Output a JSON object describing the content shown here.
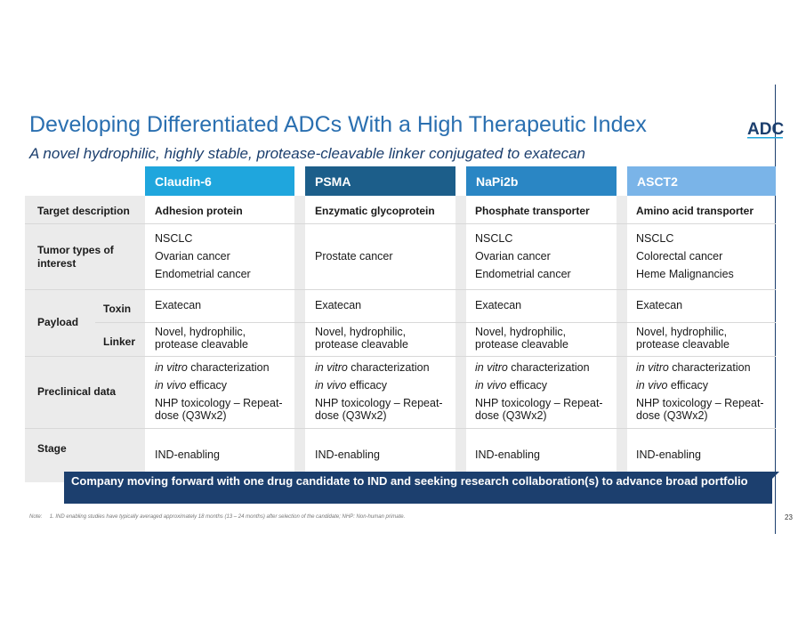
{
  "title": "Developing Differentiated ADCs With a High Therapeutic Index",
  "subtitle": "A novel hydrophilic, highly stable, protease-cleavable linker conjugated to exatecan",
  "logo_text": "ADC",
  "columns": [
    {
      "label": "Claudin-6",
      "color": "#1fa6dd"
    },
    {
      "label": "PSMA",
      "color": "#1c5e8a"
    },
    {
      "label": "NaPi2b",
      "color": "#2a86c4"
    },
    {
      "label": "ASCT2",
      "color": "#7ab4e8"
    }
  ],
  "row_labels": {
    "target": "Target description",
    "tumor": "Tumor types of interest",
    "payload": "Payload",
    "toxin": "Toxin",
    "linker": "Linker",
    "preclinical": "Preclinical data",
    "stage": "Stage"
  },
  "cells": {
    "target": [
      "Adhesion protein",
      "Enzymatic glycoprotein",
      "Phosphate transporter",
      "Amino acid transporter"
    ],
    "tumor": [
      [
        "NSCLC",
        "Ovarian cancer",
        "Endometrial cancer"
      ],
      [
        "Prostate cancer"
      ],
      [
        "NSCLC",
        "Ovarian cancer",
        "Endometrial cancer"
      ],
      [
        "NSCLC",
        "Colorectal cancer",
        "Heme Malignancies"
      ]
    ],
    "toxin": [
      "Exatecan",
      "Exatecan",
      "Exatecan",
      "Exatecan"
    ],
    "linker": [
      "Novel, hydrophilic,",
      "protease cleavable"
    ],
    "preclinical": {
      "italic_1": "in vitro",
      "rest_1": " characterization",
      "italic_2": "in vivo",
      "rest_2": " efficacy",
      "line_3": "NHP toxicology – Repeat-",
      "line_4": "dose (Q3Wx2)"
    },
    "stage": [
      "IND-enabling",
      "IND-enabling",
      "IND-enabling",
      "IND-enabling"
    ]
  },
  "banner": "Company moving forward with one drug candidate to IND and seeking research collaboration(s) to advance broad portfolio",
  "note_label": "Note:",
  "note_text": "1. IND enabling studies have typically averaged approximately 18 months (13 – 24 months) after selection of the candidate; NHP: Non-human primate.",
  "page_number": "23"
}
